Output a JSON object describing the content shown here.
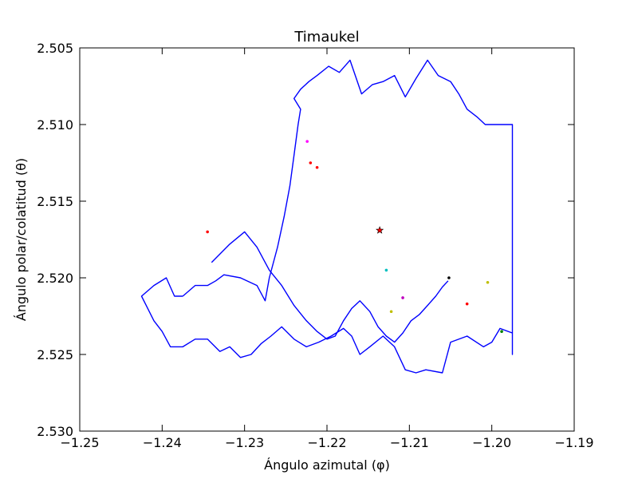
{
  "chart_data": {
    "type": "line",
    "title": "Timaukel",
    "xlabel": "Ángulo azimutal (φ)",
    "ylabel": "Ángulo polar/colatitud (θ)",
    "xlim": [
      -1.25,
      -1.19
    ],
    "ylim": [
      2.505,
      2.53
    ],
    "y_inverted": true,
    "grid": false,
    "x_ticks": [
      -1.25,
      -1.24,
      -1.23,
      -1.22,
      -1.21,
      -1.2,
      -1.19
    ],
    "x_tick_labels": [
      "−1.25",
      "−1.24",
      "−1.23",
      "−1.22",
      "−1.21",
      "−1.20",
      "−1.19"
    ],
    "y_ticks": [
      2.505,
      2.51,
      2.515,
      2.52,
      2.525,
      2.53
    ],
    "y_tick_labels": [
      "2.505",
      "2.510",
      "2.515",
      "2.520",
      "2.525",
      "2.530"
    ],
    "series": [
      {
        "color": "#0000ff",
        "x": [
          -1.2375,
          -1.236,
          -1.2345,
          -1.2335,
          -1.2325,
          -1.2305,
          -1.2285,
          -1.2275,
          -1.227,
          -1.226,
          -1.2252,
          -1.2245,
          -1.224,
          -1.2235,
          -1.2232,
          -1.224,
          -1.2232,
          -1.2222,
          -1.2212,
          -1.2198,
          -1.2185,
          -1.2172,
          -1.2158,
          -1.2145,
          -1.2132,
          -1.2118,
          -1.2105,
          -1.2092,
          -1.2078,
          -1.2065,
          -1.205,
          -1.204,
          -1.203,
          -1.2018,
          -1.2008,
          -1.2,
          -1.1996,
          -1.1985,
          -1.1975,
          -1.1975,
          -1.1975,
          -1.1975,
          -1.1975,
          -1.199,
          -1.2,
          -1.201,
          -1.203,
          -1.205,
          -1.206,
          -1.208,
          -1.2092,
          -1.2105,
          -1.2118,
          -1.2132,
          -1.2148,
          -1.216,
          -1.217,
          -1.218,
          -1.2195,
          -1.221,
          -1.2225,
          -1.224,
          -1.2255,
          -1.2268,
          -1.228,
          -1.2292,
          -1.2305,
          -1.2318,
          -1.233,
          -1.2345,
          -1.236,
          -1.2375,
          -1.239,
          -1.24,
          -1.241,
          -1.2425,
          -1.241,
          -1.2395,
          -1.2385,
          -1.2378,
          -1.2375
        ],
        "y": [
          2.5212,
          2.5205,
          2.5205,
          2.5202,
          2.5198,
          2.52,
          2.5205,
          2.5215,
          2.52,
          2.518,
          2.516,
          2.514,
          2.512,
          2.51,
          2.509,
          2.5083,
          2.5077,
          2.5072,
          2.5068,
          2.5062,
          2.5066,
          2.5058,
          2.508,
          2.5074,
          2.5072,
          2.5068,
          2.5082,
          2.507,
          2.5058,
          2.5068,
          2.5072,
          2.508,
          2.509,
          2.5095,
          2.51,
          2.51,
          2.51,
          2.51,
          2.51,
          2.515,
          2.52,
          2.525,
          2.5236,
          2.5233,
          2.5242,
          2.5245,
          2.5238,
          2.5242,
          2.5262,
          2.526,
          2.5262,
          2.526,
          2.5245,
          2.5238,
          2.5245,
          2.525,
          2.5238,
          2.5233,
          2.5238,
          2.5242,
          2.5245,
          2.524,
          2.5232,
          2.5238,
          2.5243,
          2.525,
          2.5252,
          2.5245,
          2.5248,
          2.524,
          2.524,
          2.5245,
          2.5245,
          2.5235,
          2.5228,
          2.5212,
          2.5205,
          2.52,
          2.5212,
          2.5212,
          2.5212
        ]
      },
      {
        "color": "#0000ff",
        "x": [
          -1.234,
          -1.2318,
          -1.23,
          -1.2285,
          -1.227,
          -1.2255,
          -1.224,
          -1.2225,
          -1.2212,
          -1.22,
          -1.219,
          -1.218,
          -1.217,
          -1.216,
          -1.2148,
          -1.2138,
          -1.2128,
          -1.2118,
          -1.2108,
          -1.2098,
          -1.2088,
          -1.2078,
          -1.2068,
          -1.206,
          -1.2053
        ],
        "y": [
          2.519,
          2.5178,
          2.517,
          2.518,
          2.5195,
          2.5205,
          2.5218,
          2.5228,
          2.5235,
          2.524,
          2.5238,
          2.5228,
          2.522,
          2.5215,
          2.5222,
          2.5232,
          2.5238,
          2.5242,
          2.5236,
          2.5228,
          2.5224,
          2.5218,
          2.5212,
          2.5206,
          2.5202
        ]
      }
    ],
    "points": [
      {
        "x": -1.2345,
        "y": 2.517,
        "color": "#ff0000"
      },
      {
        "x": -1.2224,
        "y": 2.5111,
        "color": "#ff00ff"
      },
      {
        "x": -1.222,
        "y": 2.5125,
        "color": "#ff0000"
      },
      {
        "x": -1.2212,
        "y": 2.5128,
        "color": "#ff0000"
      },
      {
        "x": -1.2128,
        "y": 2.5195,
        "color": "#00bfbf"
      },
      {
        "x": -1.2122,
        "y": 2.5222,
        "color": "#bfbf00"
      },
      {
        "x": -1.2108,
        "y": 2.5213,
        "color": "#bf00bf"
      },
      {
        "x": -1.2052,
        "y": 2.52,
        "color": "#000000"
      },
      {
        "x": -1.203,
        "y": 2.5217,
        "color": "#ff0000"
      },
      {
        "x": -1.2005,
        "y": 2.5203,
        "color": "#bfbf00"
      },
      {
        "x": -1.1988,
        "y": 2.5235,
        "color": "#008000"
      }
    ],
    "marker": {
      "x": -1.2136,
      "y": 2.5169,
      "symbol": "star",
      "color": "#ff0000"
    }
  }
}
